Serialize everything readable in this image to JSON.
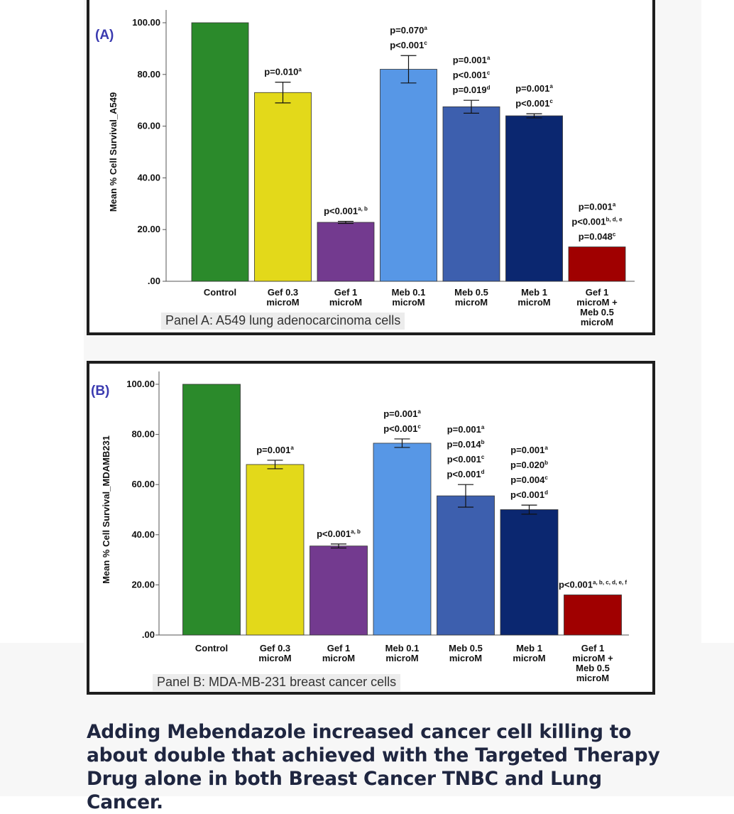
{
  "headline": "Adding Mebendazole increased cancer cell killing to about double that achieved with the Targeted Therapy Drug alone in both Breast Cancer TNBC and Lung Cancer.",
  "colors": {
    "control": "#2b8a2b",
    "gef_0_3": "#e3d91a",
    "gef_1": "#733a8f",
    "meb_0_1": "#5797e6",
    "meb_0_5": "#3d5fae",
    "meb_1": "#0b2770",
    "combo": "#a00000",
    "panel_label": "#3a3ab0"
  },
  "chart_data": [
    {
      "type": "bar",
      "panel_label": "(A)",
      "caption": "Panel A: A549 lung adenocarcinoma cells",
      "ylabel": "Mean % Cell Survival_A549",
      "ylim": [
        0,
        100
      ],
      "yticks": [
        "100.00",
        "80.00",
        "60.00",
        "40.00",
        "20.00",
        ".00"
      ],
      "ytick_values": [
        100,
        80,
        60,
        40,
        20,
        0
      ],
      "categories": [
        [
          "Control"
        ],
        [
          "Gef 0.3",
          "microM"
        ],
        [
          "Gef 1",
          "microM"
        ],
        [
          "Meb 0.1",
          "microM"
        ],
        [
          "Meb 0.5",
          "microM"
        ],
        [
          "Meb 1",
          "microM"
        ],
        [
          "Gef 1",
          "microM +",
          "Meb 0.5",
          "microM"
        ]
      ],
      "values": [
        100,
        73,
        22.8,
        82,
        67.5,
        64,
        13.3
      ],
      "errors": [
        0,
        4,
        0.4,
        5.3,
        2.5,
        0.8,
        0
      ],
      "annotations": [
        [],
        [
          {
            "t": "p=0.010",
            "s": "a"
          }
        ],
        [
          {
            "t": "p<0.001",
            "s": "a, b"
          }
        ],
        [
          {
            "t": "p=0.070",
            "s": "a"
          },
          {
            "t": "p<0.001",
            "s": "c"
          }
        ],
        [
          {
            "t": "p=0.001",
            "s": "a"
          },
          {
            "t": "p<0.001",
            "s": "c"
          },
          {
            "t": "p=0.019",
            "s": "d"
          }
        ],
        [
          {
            "t": "p=0.001",
            "s": "a"
          },
          {
            "t": "p<0.001",
            "s": "c"
          }
        ],
        [
          {
            "t": "p=0.001",
            "s": "a"
          },
          {
            "t": "p<0.001",
            "s": "b, d, e"
          },
          {
            "t": "p=0.048",
            "s": "c"
          }
        ]
      ]
    },
    {
      "type": "bar",
      "panel_label": "(B)",
      "caption": "Panel B: MDA-MB-231 breast cancer cells",
      "ylabel": "Mean % Cell Survival_MDAMB231",
      "ylim": [
        0,
        100
      ],
      "yticks": [
        "100.00",
        "80.00",
        "60.00",
        "40.00",
        "20.00",
        ".00"
      ],
      "ytick_values": [
        100,
        80,
        60,
        40,
        20,
        0
      ],
      "categories": [
        [
          "Control"
        ],
        [
          "Gef 0.3",
          "microM"
        ],
        [
          "Gef 1",
          "microM"
        ],
        [
          "Meb 0.1",
          "microM"
        ],
        [
          "Meb 0.5",
          "microM"
        ],
        [
          "Meb 1",
          "microM"
        ],
        [
          "Gef 1",
          "microM +",
          "Meb 0.5",
          "microM"
        ]
      ],
      "values": [
        100,
        68,
        35.5,
        76.5,
        55.5,
        50,
        16
      ],
      "errors": [
        0,
        1.7,
        0.8,
        1.7,
        4.5,
        1.8,
        0
      ],
      "annotations": [
        [],
        [
          {
            "t": "p=0.001",
            "s": "a"
          }
        ],
        [
          {
            "t": "p<0.001",
            "s": "a, b"
          }
        ],
        [
          {
            "t": "p=0.001",
            "s": "a"
          },
          {
            "t": "p<0.001",
            "s": "c"
          }
        ],
        [
          {
            "t": "p=0.001",
            "s": "a"
          },
          {
            "t": "p=0.014",
            "s": "b"
          },
          {
            "t": "p<0.001",
            "s": "c"
          },
          {
            "t": "p<0.001",
            "s": "d"
          }
        ],
        [
          {
            "t": "p=0.001",
            "s": "a"
          },
          {
            "t": "p=0.020",
            "s": "b"
          },
          {
            "t": "p=0.004",
            "s": "c"
          },
          {
            "t": "p<0.001",
            "s": "d"
          }
        ],
        [
          {
            "t": "p<0.001",
            "s": "a, b, c, d, e, f"
          }
        ]
      ]
    }
  ]
}
